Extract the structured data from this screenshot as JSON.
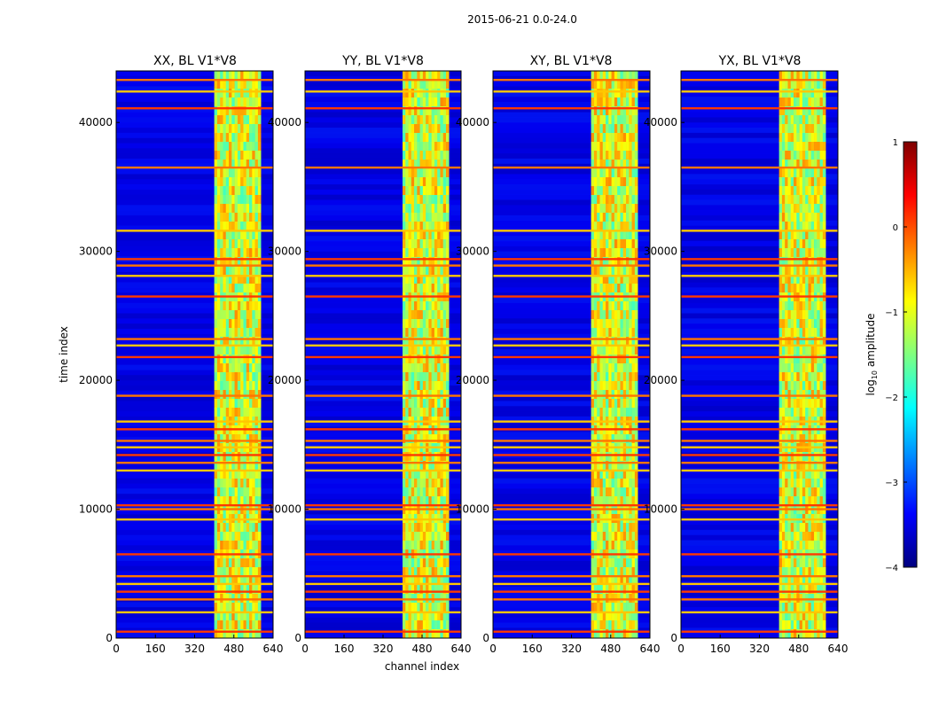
{
  "chart_data": {
    "type": "heatmap",
    "suptitle": "2015-06-21 0.0-24.0",
    "xlabel": "channel index",
    "ylabel": "time index",
    "xlim": [
      0,
      640
    ],
    "ylim": [
      0,
      44000
    ],
    "xticks": [
      0,
      160,
      320,
      480,
      640
    ],
    "yticks": [
      0,
      10000,
      20000,
      30000,
      40000
    ],
    "panels": [
      {
        "title": "XX, BL V1*V8",
        "pol": "XX"
      },
      {
        "title": "YY, BL V1*V8",
        "pol": "YY"
      },
      {
        "title": "XY, BL V1*V8",
        "pol": "XY"
      },
      {
        "title": "YX, BL V1*V8",
        "pol": "YX"
      }
    ],
    "colorbar": {
      "label": "log10 amplitude",
      "label_main": "log",
      "label_sub": "10",
      "label_rest": " amplitude",
      "range": [
        -4,
        1
      ],
      "ticks": [
        -4,
        -3,
        -2,
        -1,
        0,
        1
      ],
      "tick_labels": [
        "−4",
        "−3",
        "−2",
        "−1",
        "0",
        "1"
      ],
      "colormap": "jet"
    },
    "signal_band": {
      "channel_start": 400,
      "channel_end": 590,
      "level": -1.0
    },
    "flagged_time_rows": [
      500,
      2000,
      3000,
      3600,
      4200,
      4800,
      6500,
      9200,
      10000,
      10300,
      13000,
      13600,
      14200,
      14800,
      15300,
      16200,
      16800,
      18800,
      21800,
      22700,
      23200,
      26500,
      28100,
      28900,
      29400,
      31600,
      36500,
      41100,
      42400,
      43300
    ]
  }
}
